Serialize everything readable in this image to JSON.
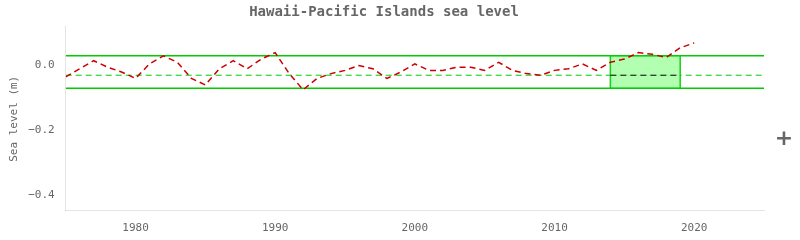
{
  "chart_data": {
    "type": "line",
    "title": "Hawaii-Pacific Islands sea level",
    "y_label": "Sea level (m)",
    "x": [
      1975,
      1976,
      1977,
      1978,
      1979,
      1980,
      1981,
      1982,
      1983,
      1984,
      1985,
      1986,
      1987,
      1988,
      1989,
      1990,
      1991,
      1992,
      1993,
      1994,
      1995,
      1996,
      1997,
      1998,
      1999,
      2000,
      2001,
      2002,
      2003,
      2004,
      2005,
      2006,
      2007,
      2008,
      2009,
      2010,
      2011,
      2012,
      2013,
      2014,
      2015,
      2016,
      2017,
      2018,
      2019,
      2020
    ],
    "series": [
      {
        "color": "#cc0000",
        "line_style": "dashed",
        "values": [
          -0.035,
          -0.01,
          0.015,
          -0.005,
          -0.02,
          -0.04,
          0.005,
          0.03,
          0.01,
          -0.04,
          -0.06,
          -0.01,
          0.015,
          -0.01,
          0.02,
          0.04,
          -0.025,
          -0.075,
          -0.04,
          -0.025,
          -0.015,
          0.0,
          -0.01,
          -0.04,
          -0.02,
          0.005,
          -0.015,
          -0.015,
          -0.005,
          -0.005,
          -0.015,
          0.01,
          -0.015,
          -0.025,
          -0.03,
          -0.015,
          -0.01,
          0.005,
          -0.015,
          0.01,
          0.02,
          0.04,
          0.035,
          0.025,
          0.055,
          0.07
        ]
      }
    ],
    "xlim": [
      1975,
      2025
    ],
    "ylim": [
      -0.45,
      0.12
    ],
    "xticks": [
      1980,
      1990,
      2000,
      2010,
      2020
    ],
    "yticks": [
      {
        "value": 0,
        "label": "0.0"
      },
      {
        "value": -0.2,
        "label": "−0.2"
      },
      {
        "value": -0.4,
        "label": "−0.4"
      }
    ],
    "grid": false,
    "hlines": [
      {
        "y": 0.03,
        "color": "#00cc00",
        "line_style": "solid"
      },
      {
        "y": -0.07,
        "color": "#00cc00",
        "line_style": "solid"
      },
      {
        "y": -0.03,
        "color": "#00cc00",
        "line_style": "dashed"
      }
    ],
    "box": {
      "x": [
        2014,
        2019
      ],
      "y": [
        -0.07,
        0.03
      ],
      "color": "#aaffaa",
      "edge_color": "#00cc00"
    },
    "box_line": {
      "y": -0.03,
      "x": [
        2014,
        2019
      ],
      "color": "#000000",
      "line_style": "dashed"
    },
    "annotations": [
      {
        "text": "+"
      }
    ]
  }
}
